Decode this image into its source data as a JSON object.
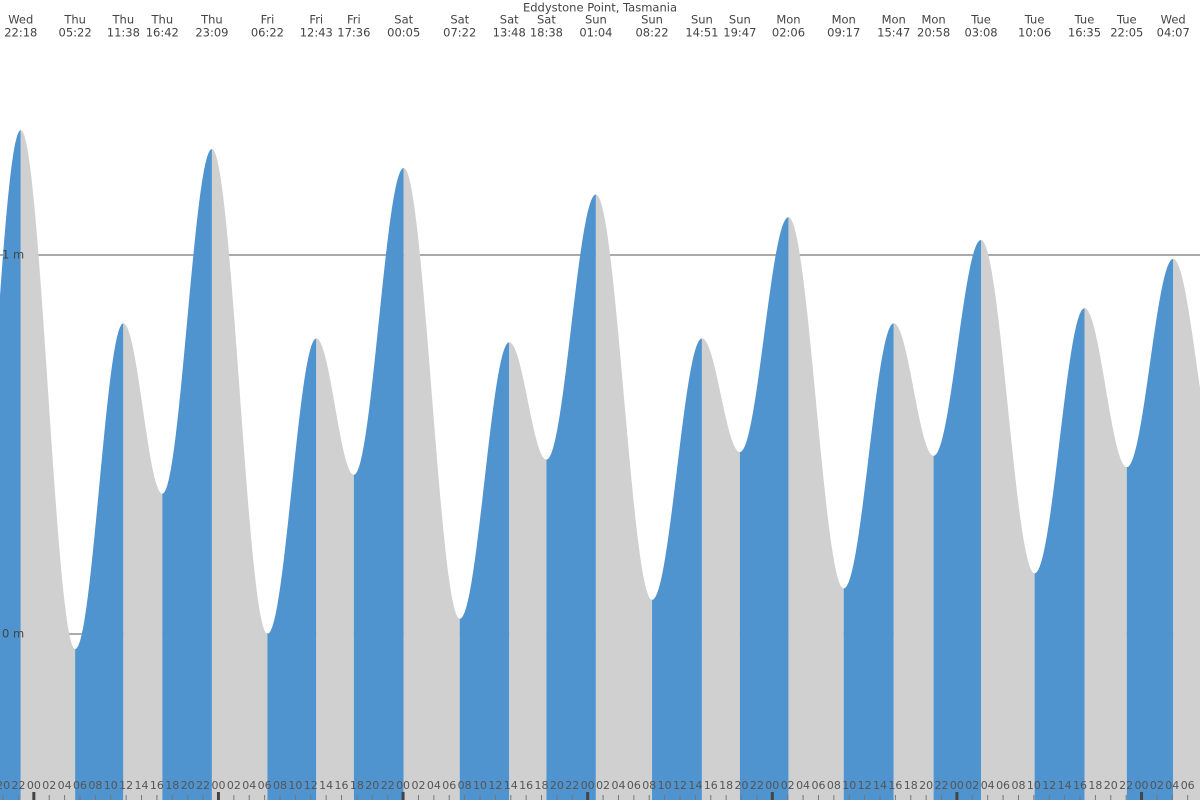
{
  "chart_data": {
    "type": "area",
    "title": "Eddystone Point, Tasmania",
    "days": [
      "Wed",
      "Thu",
      "Thu",
      "Thu",
      "Thu",
      "Fri",
      "Fri",
      "Fri",
      "Sat",
      "Sat",
      "Sat",
      "Sat",
      "Sun",
      "Sun",
      "Sun",
      "Sun",
      "Mon",
      "Mon",
      "Mon",
      "Mon",
      "Tue",
      "Tue",
      "Tue",
      "Tue",
      "Wed"
    ],
    "times": [
      "22:18",
      "05:22",
      "11:38",
      "16:42",
      "23:09",
      "06:22",
      "12:43",
      "17:36",
      "00:05",
      "07:22",
      "13:48",
      "18:38",
      "01:04",
      "08:22",
      "14:51",
      "19:47",
      "02:06",
      "09:17",
      "15:47",
      "20:58",
      "03:08",
      "10:06",
      "16:35",
      "22:05",
      "04:07"
    ],
    "values": [
      1.33,
      -0.04,
      0.82,
      0.37,
      1.28,
      0.0,
      0.78,
      0.42,
      1.23,
      0.04,
      0.77,
      0.46,
      1.16,
      0.09,
      0.78,
      0.48,
      1.1,
      0.12,
      0.82,
      0.47,
      1.04,
      0.16,
      0.86,
      0.44,
      0.99
    ],
    "colors": {
      "rising": "#4f93cf",
      "falling": "#d0d0d0"
    },
    "xlim": [
      19.6,
      175.6
    ],
    "xticks": [
      {
        "value": 20,
        "label": "20"
      },
      {
        "value": 22,
        "label": "22"
      },
      {
        "value": 24,
        "label": "00"
      },
      {
        "value": 26,
        "label": "02"
      },
      {
        "value": 28,
        "label": "04"
      },
      {
        "value": 30,
        "label": "06"
      },
      {
        "value": 32,
        "label": "08"
      },
      {
        "value": 34,
        "label": "10"
      },
      {
        "value": 36,
        "label": "12"
      },
      {
        "value": 38,
        "label": "14"
      },
      {
        "value": 40,
        "label": "16"
      },
      {
        "value": 42,
        "label": "18"
      },
      {
        "value": 44,
        "label": "20"
      },
      {
        "value": 46,
        "label": "22"
      },
      {
        "value": 48,
        "label": "00"
      },
      {
        "value": 50,
        "label": "02"
      },
      {
        "value": 52,
        "label": "04"
      },
      {
        "value": 54,
        "label": "06"
      },
      {
        "value": 56,
        "label": "08"
      },
      {
        "value": 58,
        "label": "10"
      },
      {
        "value": 60,
        "label": "12"
      },
      {
        "value": 62,
        "label": "14"
      },
      {
        "value": 64,
        "label": "16"
      },
      {
        "value": 66,
        "label": "18"
      },
      {
        "value": 68,
        "label": "20"
      },
      {
        "value": 70,
        "label": "22"
      },
      {
        "value": 72,
        "label": "00"
      },
      {
        "value": 74,
        "label": "02"
      },
      {
        "value": 76,
        "label": "04"
      },
      {
        "value": 78,
        "label": "06"
      },
      {
        "value": 80,
        "label": "08"
      },
      {
        "value": 82,
        "label": "10"
      },
      {
        "value": 84,
        "label": "12"
      },
      {
        "value": 86,
        "label": "14"
      },
      {
        "value": 88,
        "label": "16"
      },
      {
        "value": 90,
        "label": "18"
      },
      {
        "value": 92,
        "label": "20"
      },
      {
        "value": 94,
        "label": "22"
      },
      {
        "value": 96,
        "label": "00"
      },
      {
        "value": 98,
        "label": "02"
      },
      {
        "value": 100,
        "label": "04"
      },
      {
        "value": 102,
        "label": "06"
      },
      {
        "value": 104,
        "label": "08"
      },
      {
        "value": 106,
        "label": "10"
      },
      {
        "value": 108,
        "label": "12"
      },
      {
        "value": 110,
        "label": "14"
      },
      {
        "value": 112,
        "label": "16"
      },
      {
        "value": 114,
        "label": "18"
      },
      {
        "value": 116,
        "label": "20"
      },
      {
        "value": 118,
        "label": "22"
      },
      {
        "value": 120,
        "label": "00"
      },
      {
        "value": 122,
        "label": "02"
      },
      {
        "value": 124,
        "label": "04"
      },
      {
        "value": 126,
        "label": "06"
      },
      {
        "value": 128,
        "label": "08"
      },
      {
        "value": 130,
        "label": "10"
      },
      {
        "value": 132,
        "label": "12"
      },
      {
        "value": 134,
        "label": "14"
      },
      {
        "value": 136,
        "label": "16"
      },
      {
        "value": 138,
        "label": "18"
      },
      {
        "value": 140,
        "label": "20"
      },
      {
        "value": 142,
        "label": "22"
      },
      {
        "value": 144,
        "label": "00"
      },
      {
        "value": 146,
        "label": "02"
      },
      {
        "value": 148,
        "label": "04"
      },
      {
        "value": 150,
        "label": "06"
      },
      {
        "value": 152,
        "label": "08"
      },
      {
        "value": 154,
        "label": "10"
      },
      {
        "value": 156,
        "label": "12"
      },
      {
        "value": 158,
        "label": "14"
      },
      {
        "value": 160,
        "label": "16"
      },
      {
        "value": 162,
        "label": "18"
      },
      {
        "value": 164,
        "label": "20"
      },
      {
        "value": 166,
        "label": "22"
      },
      {
        "value": 168,
        "label": "00"
      },
      {
        "value": 170,
        "label": "02"
      },
      {
        "value": 172,
        "label": "04"
      },
      {
        "value": 174,
        "label": "06"
      }
    ],
    "ylim": [
      -0.438,
      1.673
    ],
    "yticks": [
      {
        "value": 0,
        "label": "0 m"
      },
      {
        "value": 1,
        "label": "1 m"
      }
    ],
    "grid": true
  }
}
